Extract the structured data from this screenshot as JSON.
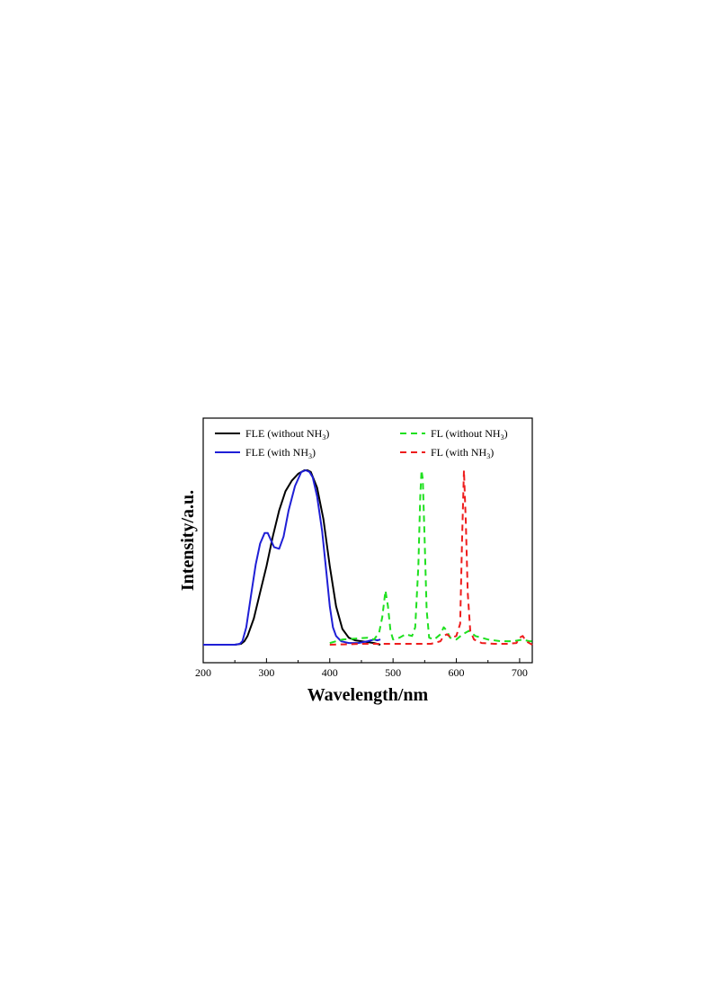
{
  "chart_data": {
    "type": "line",
    "xlabel": "Wavelength/nm",
    "ylabel": "Intensity/a.u.",
    "xlim": [
      200,
      720
    ],
    "ylim": [
      0,
      1.1
    ],
    "x_ticks": [
      "200",
      "300",
      "400",
      "500",
      "600",
      "700"
    ],
    "legend": {
      "placement": "top",
      "entries": [
        {
          "label": "FLE (without NH",
          "sub": "3",
          "close": ")",
          "color": "#000000",
          "dash": "solid"
        },
        {
          "label": "FLE (with NH",
          "sub": "3",
          "close": ")",
          "color": "#1f1fd6",
          "dash": "solid"
        },
        {
          "label": "FL (without NH",
          "sub": "3",
          "close": ")",
          "color": "#1fe01f",
          "dash": "dashed"
        },
        {
          "label": "FL (with NH",
          "sub": "3",
          "close": ")",
          "color": "#ee1c1c",
          "dash": "dashed"
        }
      ]
    },
    "series": [
      {
        "name": "FLE (without NH3)",
        "color": "#000000",
        "dash": "solid",
        "x": [
          200,
          250,
          260,
          265,
          270,
          280,
          290,
          300,
          310,
          320,
          330,
          340,
          350,
          360,
          365,
          370,
          380,
          390,
          400,
          410,
          420,
          430,
          440,
          450,
          460,
          470,
          480
        ],
        "y": [
          0.0,
          0.0,
          0.005,
          0.02,
          0.05,
          0.15,
          0.3,
          0.45,
          0.62,
          0.77,
          0.88,
          0.94,
          0.98,
          1.0,
          1.0,
          0.99,
          0.9,
          0.72,
          0.45,
          0.22,
          0.09,
          0.04,
          0.025,
          0.02,
          0.015,
          0.01,
          0.0
        ]
      },
      {
        "name": "FLE (with NH3)",
        "color": "#1f1fd6",
        "dash": "solid",
        "x": [
          200,
          250,
          258,
          262,
          268,
          275,
          283,
          290,
          297,
          302,
          307,
          312,
          320,
          327,
          335,
          345,
          355,
          362,
          368,
          373,
          380,
          388,
          395,
          400,
          405,
          410,
          418,
          430,
          445,
          460,
          470,
          475,
          480
        ],
        "y": [
          0.0,
          0.0,
          0.005,
          0.02,
          0.1,
          0.27,
          0.46,
          0.58,
          0.64,
          0.64,
          0.6,
          0.56,
          0.55,
          0.62,
          0.77,
          0.91,
          0.99,
          1.0,
          0.99,
          0.96,
          0.85,
          0.65,
          0.4,
          0.22,
          0.1,
          0.05,
          0.02,
          0.01,
          0.01,
          0.02,
          0.03,
          0.025,
          0.03
        ]
      },
      {
        "name": "FL (without NH3)",
        "color": "#1fe01f",
        "dash": "dashed",
        "x": [
          400,
          420,
          440,
          460,
          470,
          478,
          483,
          488,
          492,
          496,
          500,
          510,
          520,
          530,
          535,
          540,
          543,
          545,
          547,
          550,
          553,
          557,
          565,
          575,
          580,
          585,
          590,
          600,
          610,
          620,
          630,
          650,
          670,
          690,
          705,
          715,
          720
        ],
        "y": [
          0.01,
          0.03,
          0.035,
          0.04,
          0.03,
          0.07,
          0.16,
          0.31,
          0.22,
          0.08,
          0.03,
          0.04,
          0.06,
          0.05,
          0.1,
          0.45,
          0.85,
          1.0,
          0.95,
          0.6,
          0.2,
          0.04,
          0.03,
          0.06,
          0.1,
          0.08,
          0.04,
          0.03,
          0.06,
          0.08,
          0.05,
          0.03,
          0.02,
          0.02,
          0.03,
          0.02,
          0.02
        ]
      },
      {
        "name": "FL (with NH3)",
        "color": "#ee1c1c",
        "dash": "dashed",
        "x": [
          400,
          450,
          500,
          560,
          575,
          580,
          585,
          592,
          600,
          606,
          609,
          612,
          615,
          618,
          622,
          628,
          640,
          660,
          680,
          695,
          700,
          705,
          710,
          720
        ],
        "y": [
          0.0,
          0.005,
          0.005,
          0.005,
          0.02,
          0.05,
          0.06,
          0.04,
          0.05,
          0.12,
          0.6,
          1.0,
          0.7,
          0.3,
          0.08,
          0.03,
          0.01,
          0.005,
          0.005,
          0.01,
          0.04,
          0.05,
          0.02,
          0.0
        ]
      }
    ]
  }
}
